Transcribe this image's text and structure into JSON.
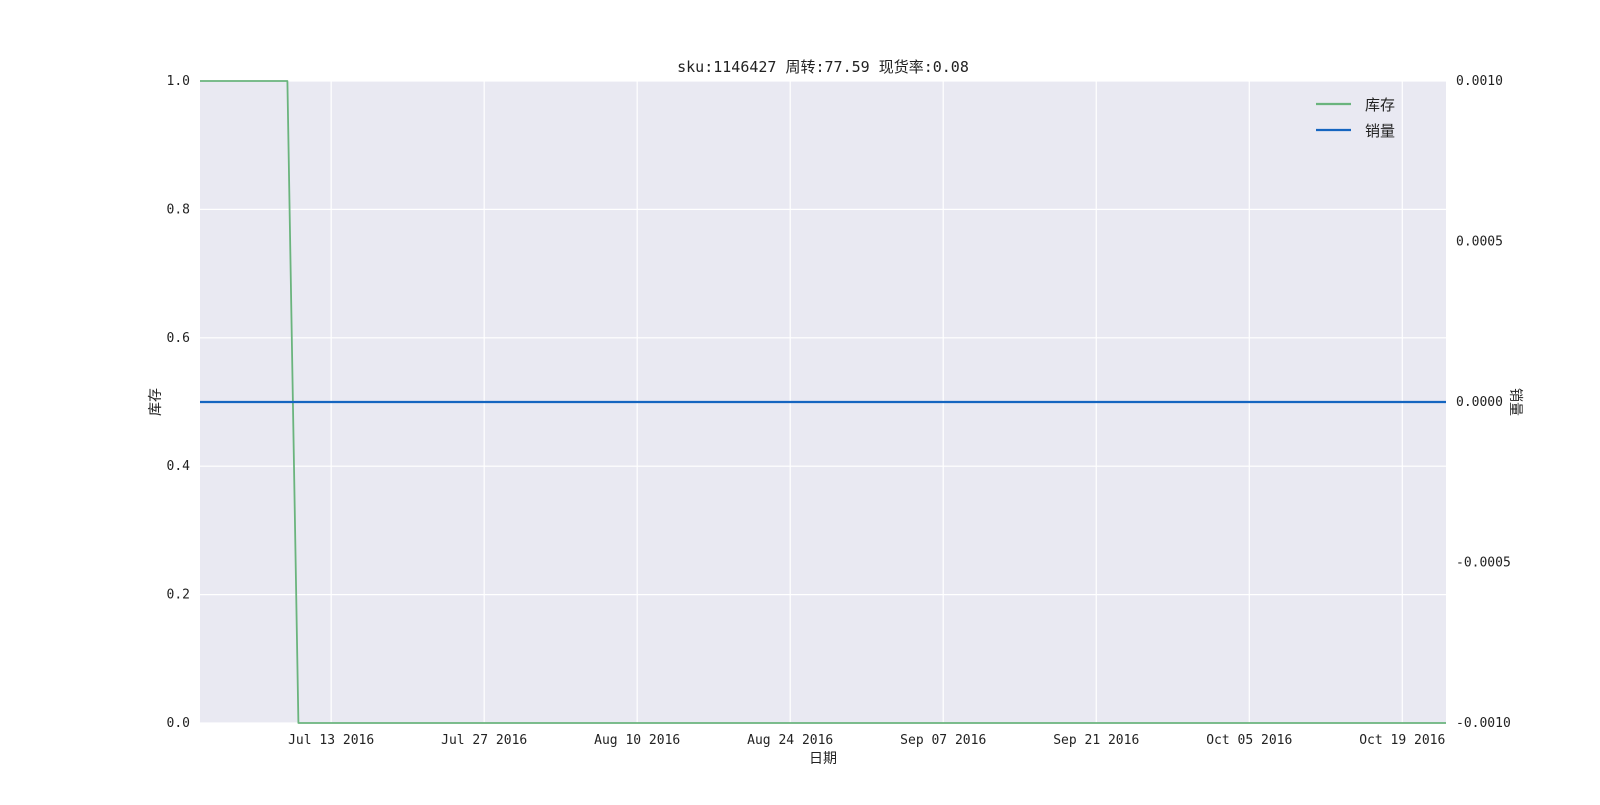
{
  "chart_data": {
    "type": "line",
    "title": "sku:1146427 周转:77.59 现货率:0.08",
    "xlabel": "日期",
    "ylabel_left": "库存",
    "ylabel_right": "销量",
    "x_range": [
      "2016-07-01",
      "2016-10-23"
    ],
    "x_ticks": [
      {
        "date": "2016-07-13",
        "label": "Jul 13 2016"
      },
      {
        "date": "2016-07-27",
        "label": "Jul 27 2016"
      },
      {
        "date": "2016-08-10",
        "label": "Aug 10 2016"
      },
      {
        "date": "2016-08-24",
        "label": "Aug 24 2016"
      },
      {
        "date": "2016-09-07",
        "label": "Sep 07 2016"
      },
      {
        "date": "2016-09-21",
        "label": "Sep 21 2016"
      },
      {
        "date": "2016-10-05",
        "label": "Oct 05 2016"
      },
      {
        "date": "2016-10-19",
        "label": "Oct 19 2016"
      }
    ],
    "ylim_left": [
      0,
      1
    ],
    "yticks_left": [
      "0.0",
      "0.2",
      "0.4",
      "0.6",
      "0.8",
      "1.0"
    ],
    "ylim_right": [
      -0.001,
      0.001
    ],
    "yticks_right": [
      "-0.0010",
      "-0.0005",
      "0.0000",
      "0.0005",
      "0.0010"
    ],
    "grid": true,
    "legend_position": "top-right",
    "series": [
      {
        "name": "库存",
        "axis": "left",
        "color": "#6ab47d",
        "points": [
          {
            "x": "2016-07-01",
            "y": 1
          },
          {
            "x": "2016-07-09",
            "y": 1
          },
          {
            "x": "2016-07-10",
            "y": 0
          },
          {
            "x": "2016-10-23",
            "y": 0
          }
        ]
      },
      {
        "name": "销量",
        "axis": "right",
        "color": "#1565c0",
        "points": [
          {
            "x": "2016-07-01",
            "y": 0
          },
          {
            "x": "2016-10-23",
            "y": 0
          }
        ]
      }
    ]
  }
}
